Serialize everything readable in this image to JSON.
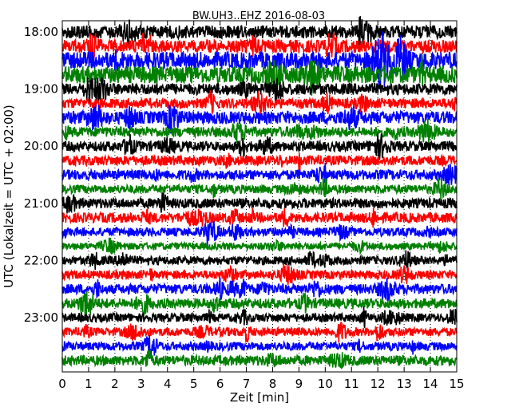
{
  "chart_data": {
    "type": "line",
    "title": "BW.UH3..EHZ 2016-08-03",
    "xlabel": "Zeit  [min]",
    "ylabel": "UTC (Lokalzeit = UTC + 02:00)",
    "xlim": [
      0,
      15
    ],
    "x_ticks": [
      0,
      1,
      2,
      3,
      4,
      5,
      6,
      7,
      8,
      9,
      10,
      11,
      12,
      13,
      14,
      15
    ],
    "x_tick_labels": [
      "0",
      "1",
      "2",
      "3",
      "4",
      "5",
      "6",
      "7",
      "8",
      "9",
      "10",
      "11",
      "12",
      "13",
      "14",
      "15"
    ],
    "y_tick_labels": [
      "18:00",
      "19:00",
      "20:00",
      "21:00",
      "22:00",
      "23:00"
    ],
    "y_tick_rows": [
      0,
      4,
      8,
      12,
      16,
      20
    ],
    "grid": {
      "x": true,
      "y": false,
      "style": "dotted"
    },
    "trace_colors": [
      "#000000",
      "#ff0000",
      "#0000ff",
      "#008000"
    ],
    "traces": [
      {
        "start": "18:00",
        "amplitude": 0.45
      },
      {
        "start": "18:15",
        "amplitude": 0.45
      },
      {
        "start": "18:30",
        "amplitude": 0.6
      },
      {
        "start": "18:45",
        "amplitude": 0.6
      },
      {
        "start": "19:00",
        "amplitude": 0.4
      },
      {
        "start": "19:15",
        "amplitude": 0.35
      },
      {
        "start": "19:30",
        "amplitude": 0.45
      },
      {
        "start": "19:45",
        "amplitude": 0.35
      },
      {
        "start": "20:00",
        "amplitude": 0.35
      },
      {
        "start": "20:15",
        "amplitude": 0.35
      },
      {
        "start": "20:30",
        "amplitude": 0.35
      },
      {
        "start": "20:45",
        "amplitude": 0.3
      },
      {
        "start": "21:00",
        "amplitude": 0.35
      },
      {
        "start": "21:15",
        "amplitude": 0.35
      },
      {
        "start": "21:30",
        "amplitude": 0.3
      },
      {
        "start": "21:45",
        "amplitude": 0.25
      },
      {
        "start": "22:00",
        "amplitude": 0.3
      },
      {
        "start": "22:15",
        "amplitude": 0.3
      },
      {
        "start": "22:30",
        "amplitude": 0.35
      },
      {
        "start": "22:45",
        "amplitude": 0.35
      },
      {
        "start": "23:00",
        "amplitude": 0.3
      },
      {
        "start": "23:15",
        "amplitude": 0.3
      },
      {
        "start": "23:30",
        "amplitude": 0.3
      },
      {
        "start": "23:45",
        "amplitude": 0.35
      }
    ]
  }
}
